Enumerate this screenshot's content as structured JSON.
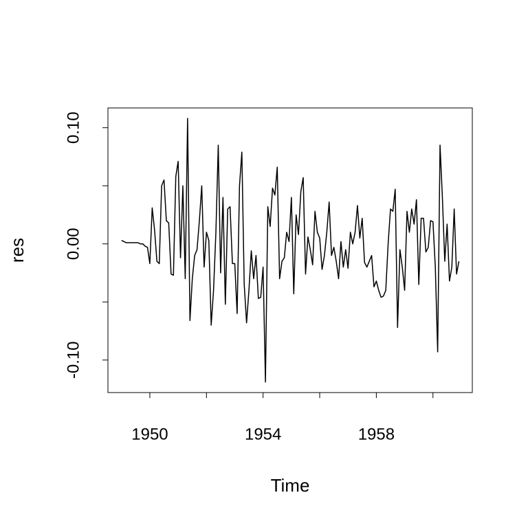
{
  "chart_data": {
    "type": "line",
    "xlabel": "Time",
    "ylabel": "res",
    "color": "#000000",
    "x": [
      1949,
      1949.0833,
      1949.1667,
      1949.25,
      1949.3333,
      1949.4167,
      1949.5,
      1949.5833,
      1949.6667,
      1949.75,
      1949.8333,
      1949.9167,
      1950,
      1950.0833,
      1950.1667,
      1950.25,
      1950.3333,
      1950.4167,
      1950.5,
      1950.5833,
      1950.6667,
      1950.75,
      1950.8333,
      1950.9167,
      1951,
      1951.0833,
      1951.1667,
      1951.25,
      1951.3333,
      1951.4167,
      1951.5,
      1951.5833,
      1951.6667,
      1951.75,
      1951.8333,
      1951.9167,
      1952,
      1952.0833,
      1952.1667,
      1952.25,
      1952.3333,
      1952.4167,
      1952.5,
      1952.5833,
      1952.6667,
      1952.75,
      1952.8333,
      1952.9167,
      1953,
      1953.0833,
      1953.1667,
      1953.25,
      1953.3333,
      1953.4167,
      1953.5,
      1953.5833,
      1953.6667,
      1953.75,
      1953.8333,
      1953.9167,
      1954,
      1954.0833,
      1954.1667,
      1954.25,
      1954.3333,
      1954.4167,
      1954.5,
      1954.5833,
      1954.6667,
      1954.75,
      1954.8333,
      1954.9167,
      1955,
      1955.0833,
      1955.1667,
      1955.25,
      1955.3333,
      1955.4167,
      1955.5,
      1955.5833,
      1955.6667,
      1955.75,
      1955.8333,
      1955.9167,
      1956,
      1956.0833,
      1956.1667,
      1956.25,
      1956.3333,
      1956.4167,
      1956.5,
      1956.5833,
      1956.6667,
      1956.75,
      1956.8333,
      1956.9167,
      1957,
      1957.0833,
      1957.1667,
      1957.25,
      1957.3333,
      1957.4167,
      1957.5,
      1957.5833,
      1957.6667,
      1957.75,
      1957.8333,
      1957.9167,
      1958,
      1958.0833,
      1958.1667,
      1958.25,
      1958.3333,
      1958.4167,
      1958.5,
      1958.5833,
      1958.6667,
      1958.75,
      1958.8333,
      1958.9167,
      1959,
      1959.0833,
      1959.1667,
      1959.25,
      1959.3333,
      1959.4167,
      1959.5,
      1959.5833,
      1959.6667,
      1959.75,
      1959.8333,
      1959.9167,
      1960,
      1960.0833,
      1960.1667,
      1960.25,
      1960.3333,
      1960.4167,
      1960.5,
      1960.5833,
      1960.6667,
      1960.75,
      1960.8333,
      1960.9167
    ],
    "values": [
      0.003,
      0.002,
      0.001,
      0.001,
      0.001,
      0.001,
      0.001,
      0.001,
      0.0,
      0.0,
      -0.002,
      -0.003,
      -0.017,
      0.031,
      0.012,
      -0.015,
      -0.017,
      0.05,
      0.055,
      0.02,
      0.018,
      -0.026,
      -0.027,
      0.058,
      0.071,
      -0.012,
      0.05,
      -0.03,
      0.108,
      -0.066,
      -0.03,
      -0.01,
      -0.005,
      0.02,
      0.05,
      -0.02,
      0.01,
      0.003,
      -0.07,
      -0.04,
      0.01,
      0.085,
      -0.025,
      0.04,
      -0.052,
      0.03,
      0.032,
      -0.017,
      -0.017,
      -0.06,
      0.05,
      0.079,
      -0.035,
      -0.068,
      -0.04,
      -0.006,
      -0.03,
      -0.01,
      -0.047,
      -0.046,
      -0.02,
      -0.119,
      0.032,
      0.015,
      0.048,
      0.042,
      0.066,
      -0.03,
      -0.015,
      -0.012,
      0.01,
      0.002,
      0.04,
      -0.043,
      0.025,
      0.008,
      0.045,
      0.057,
      -0.026,
      0.006,
      -0.005,
      -0.018,
      0.028,
      0.01,
      0.005,
      -0.022,
      -0.01,
      0.01,
      0.036,
      -0.01,
      -0.003,
      -0.015,
      -0.03,
      0.002,
      -0.02,
      -0.005,
      -0.021,
      0.01,
      0.0,
      0.01,
      0.033,
      0.005,
      0.022,
      -0.016,
      -0.02,
      -0.015,
      -0.01,
      -0.037,
      -0.032,
      -0.04,
      -0.046,
      -0.045,
      -0.04,
      0.0,
      0.03,
      0.028,
      0.047,
      -0.072,
      -0.005,
      -0.02,
      -0.04,
      0.028,
      0.01,
      0.03,
      0.017,
      0.038,
      -0.035,
      0.022,
      0.022,
      -0.007,
      -0.003,
      0.02,
      0.019,
      -0.02,
      -0.093,
      0.085,
      0.04,
      -0.015,
      0.017,
      -0.032,
      -0.02,
      0.03,
      -0.026,
      -0.015
    ],
    "xlim": [
      1948.52,
      1961.39
    ],
    "xticks": [
      1950,
      1954,
      1958
    ],
    "minor_xticks": [
      1952,
      1956,
      1960
    ],
    "ylim": [
      -0.128,
      0.117
    ],
    "yticks": [
      {
        "value": -0.1,
        "label": "-0.10"
      },
      {
        "value": 0,
        "label": "0.00"
      },
      {
        "value": 0.1,
        "label": "0.10"
      }
    ],
    "minor_yticks": [
      -0.05,
      0.05
    ]
  }
}
